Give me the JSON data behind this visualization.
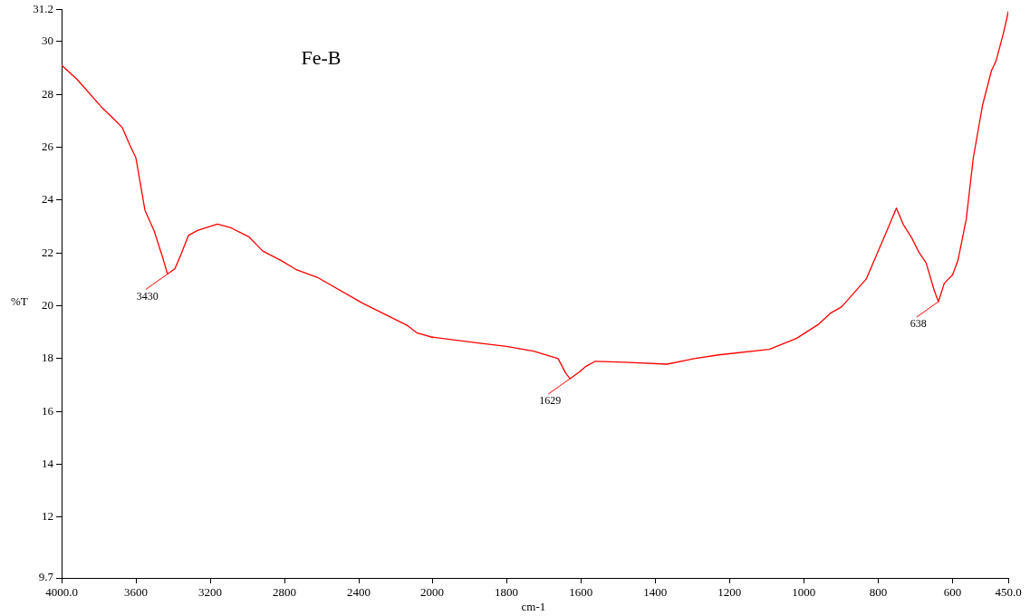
{
  "chart_data": [
    {
      "type": "line",
      "title": "Fe-B",
      "ylabel": "%T",
      "xlim": [
        4000,
        2000
      ],
      "ylim": [
        9.7,
        31.2
      ],
      "xticks": [
        {
          "value": 4000,
          "label": "4000.0"
        },
        3600,
        3200,
        2800,
        2400
      ],
      "yticks": [
        9.7,
        12,
        14,
        16,
        18,
        20,
        22,
        24,
        26,
        28,
        30,
        31.2
      ],
      "grid": false,
      "legend": false,
      "marker": "none",
      "line_style": "solid",
      "series": [
        {
          "color": "#ff0000",
          "x": [
            4000,
            3917,
            3780,
            3722,
            3673,
            3634,
            3600,
            3551,
            3502,
            3454,
            3430,
            3390,
            3356,
            3317,
            3268,
            3161,
            3088,
            2990,
            2917,
            2820,
            2737,
            2624,
            2380,
            2137,
            2088,
            2000
          ],
          "values": [
            29.1,
            28.57,
            27.48,
            27.09,
            26.74,
            26.1,
            25.6,
            23.61,
            22.84,
            21.79,
            21.2,
            21.4,
            21.96,
            22.66,
            22.85,
            23.09,
            22.95,
            22.6,
            22.07,
            21.72,
            21.37,
            21.08,
            20.1,
            19.25,
            18.98,
            18.8
          ]
        }
      ],
      "annotations": [
        {
          "text": "3430",
          "x": 3430,
          "y": 21.2
        }
      ]
    },
    {
      "type": "line",
      "xlabel": "cm-1",
      "xlim": [
        2000,
        450
      ],
      "ylim": [
        9.7,
        31.2
      ],
      "xticks": [
        2000,
        1800,
        1600,
        1400,
        1200,
        1000,
        800,
        600,
        {
          "value": 450,
          "label": "450.0"
        }
      ],
      "tick_labels": "x",
      "grid": false,
      "legend": false,
      "marker": "none",
      "line_style": "solid",
      "series": [
        {
          "color": "#ff0000",
          "x": [
            2000,
            1866,
            1800,
            1727,
            1661,
            1641,
            1629,
            1605,
            1588,
            1561,
            1483,
            1368,
            1295,
            1229,
            1093,
            1020,
            959,
            929,
            898,
            832,
            768,
            751,
            732,
            710,
            690,
            671,
            649,
            638,
            622,
            600,
            585,
            563,
            544,
            519,
            495,
            483,
            463,
            453,
            450
          ],
          "values": [
            18.8,
            18.56,
            18.45,
            18.27,
            17.99,
            17.45,
            17.23,
            17.47,
            17.68,
            17.89,
            17.85,
            17.78,
            17.99,
            18.13,
            18.34,
            18.75,
            19.3,
            19.7,
            19.95,
            21.0,
            23.1,
            23.68,
            23.05,
            22.56,
            22.0,
            21.61,
            20.56,
            20.14,
            20.84,
            21.15,
            21.72,
            23.26,
            25.58,
            27.58,
            28.88,
            29.23,
            30.29,
            30.9,
            31.1
          ]
        }
      ],
      "annotations": [
        {
          "text": "1629",
          "x": 1629,
          "y": 17.23
        },
        {
          "text": "638",
          "x": 638,
          "y": 20.14
        }
      ]
    }
  ]
}
